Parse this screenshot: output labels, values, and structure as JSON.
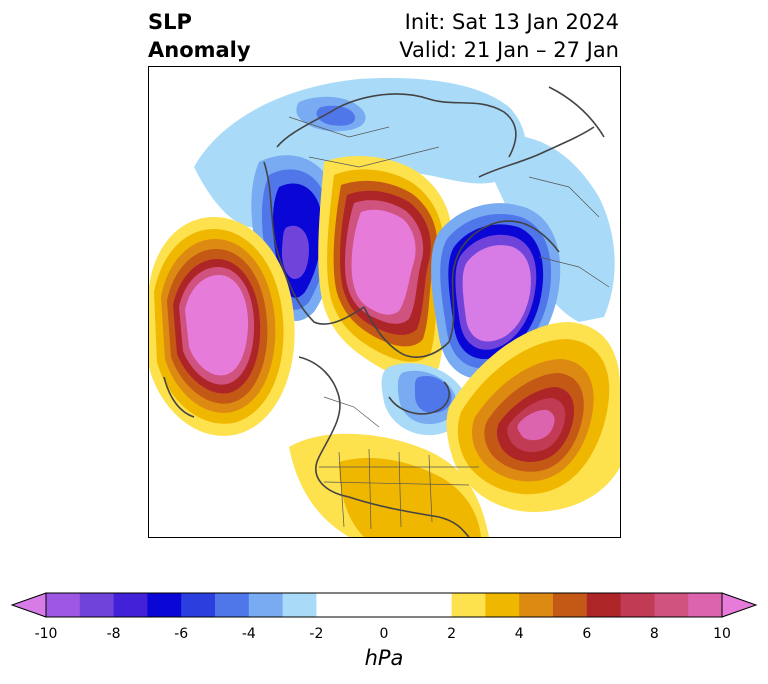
{
  "header": {
    "title_line1": "SLP",
    "title_line2": "Anomaly",
    "init_text": "Init: Sat 13 Jan 2024",
    "valid_text": "Valid: 21 Jan – 27 Jan"
  },
  "colorbar": {
    "unit": "hPa",
    "min": -10,
    "max": 10,
    "tick_values": [
      -10,
      -8,
      -6,
      -4,
      -2,
      0,
      2,
      4,
      6,
      8,
      10
    ],
    "tick_labels": [
      "-10",
      "-8",
      "-6",
      "-4",
      "-2",
      "0",
      "2",
      "4",
      "6",
      "8",
      "10"
    ],
    "extend": "both",
    "levels": [
      {
        "lo": -11,
        "hi": -10,
        "color": "#d77be6"
      },
      {
        "lo": -10,
        "hi": -9,
        "color": "#9d57e2"
      },
      {
        "lo": -9,
        "hi": -8,
        "color": "#7043db"
      },
      {
        "lo": -8,
        "hi": -7,
        "color": "#4221d8"
      },
      {
        "lo": -7,
        "hi": -6,
        "color": "#0a07d6"
      },
      {
        "lo": -6,
        "hi": -5,
        "color": "#2b3fdf"
      },
      {
        "lo": -5,
        "hi": -4,
        "color": "#4f77ea"
      },
      {
        "lo": -4,
        "hi": -3,
        "color": "#78abf1"
      },
      {
        "lo": -3,
        "hi": -2,
        "color": "#a9dbf8"
      },
      {
        "lo": -2,
        "hi": 2,
        "color": "#ffffff"
      },
      {
        "lo": 2,
        "hi": 3,
        "color": "#fde14d"
      },
      {
        "lo": 3,
        "hi": 4,
        "color": "#f0b700"
      },
      {
        "lo": 4,
        "hi": 5,
        "color": "#dd8a13"
      },
      {
        "lo": 5,
        "hi": 6,
        "color": "#c45916"
      },
      {
        "lo": 6,
        "hi": 7,
        "color": "#ae2528"
      },
      {
        "lo": 7,
        "hi": 8,
        "color": "#c23b55"
      },
      {
        "lo": 8,
        "hi": 9,
        "color": "#d0527f"
      },
      {
        "lo": 9,
        "hi": 10,
        "color": "#dc63ad"
      },
      {
        "lo": 10,
        "hi": 11,
        "color": "#e67bda"
      }
    ]
  },
  "map": {
    "projection": "north polar stereographic",
    "anomaly_centers": [
      {
        "name": "NE Pacific high",
        "sign": "positive"
      },
      {
        "name": "Arctic / Siberia high",
        "sign": "positive"
      },
      {
        "name": "North Atlantic high",
        "sign": "positive"
      },
      {
        "name": "Eurasia low",
        "sign": "negative"
      },
      {
        "name": "East Asia low",
        "sign": "negative"
      },
      {
        "name": "Hudson Bay low",
        "sign": "negative"
      }
    ]
  }
}
